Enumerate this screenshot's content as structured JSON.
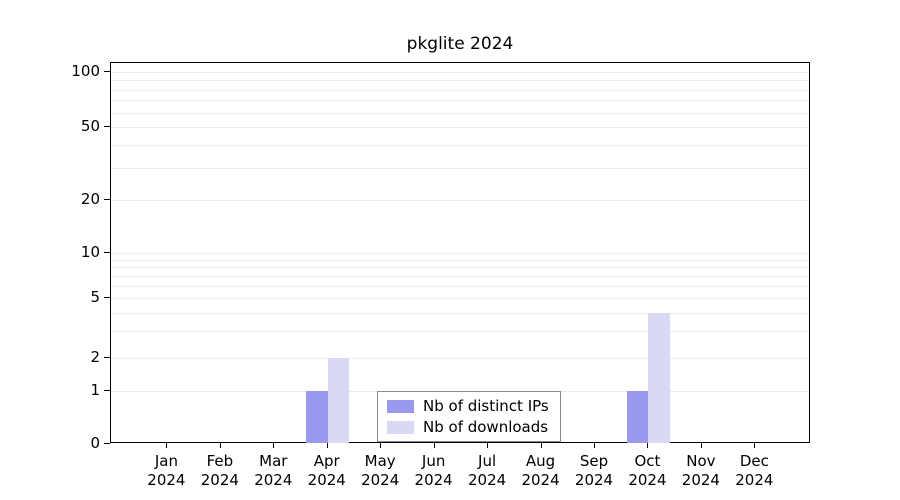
{
  "chart_data": {
    "type": "bar",
    "title": "pkglite 2024",
    "categories": [
      "Jan",
      "Feb",
      "Mar",
      "Apr",
      "May",
      "Jun",
      "Jul",
      "Aug",
      "Sep",
      "Oct",
      "Nov",
      "Dec"
    ],
    "year_label": "2024",
    "series": [
      {
        "name": "Nb of distinct IPs",
        "color": "#9999ee",
        "values": [
          0,
          0,
          0,
          1,
          0,
          0,
          0,
          0,
          0,
          1,
          0,
          0
        ]
      },
      {
        "name": "Nb of downloads",
        "color": "#d9d9f6",
        "values": [
          0,
          0,
          0,
          2,
          0,
          0,
          0,
          0,
          0,
          4,
          0,
          0
        ]
      }
    ],
    "yscale": "log",
    "ylim": [
      0,
      100
    ],
    "yticks": [
      0,
      1,
      2,
      5,
      10,
      20,
      50,
      100
    ],
    "grid_values": [
      1,
      2,
      3,
      4,
      5,
      6,
      7,
      8,
      9,
      10,
      20,
      30,
      40,
      50,
      60,
      70,
      80,
      90,
      100
    ],
    "grid": "horizontal",
    "legend_position": "bottom-center"
  },
  "colors": {
    "grid": "#ebebeb",
    "axis": "#000000",
    "background": "#ffffff",
    "legend_border": "#8a8a8a"
  }
}
